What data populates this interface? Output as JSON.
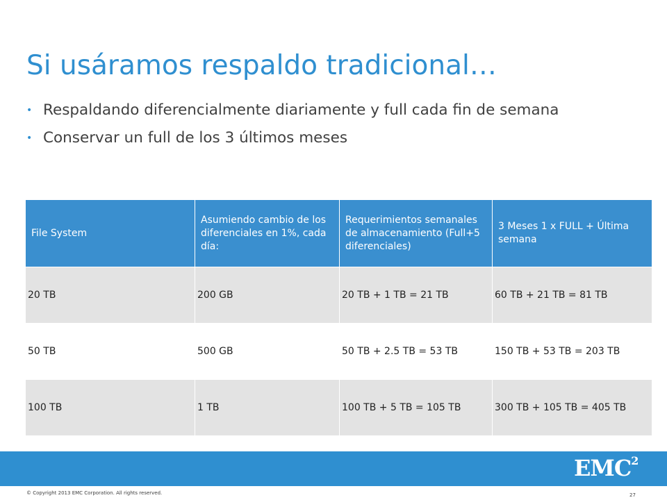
{
  "slide": {
    "title": "Si usáramos respaldo tradicional…",
    "bullets": [
      "Respaldando diferencialmente diariamente y full cada fin de semana",
      "Conservar un full de los 3 últimos meses"
    ]
  },
  "table": {
    "headers": [
      "File System",
      "Asumiendo cambio de los diferenciales en 1%, cada día:",
      "Requerimientos semanales de almacenamiento (Full+5 diferenciales)",
      "3 Meses 1 x FULL + Última semana"
    ],
    "rows": [
      [
        "20 TB",
        "200 GB",
        "20 TB + 1 TB = 21 TB",
        "60 TB + 21 TB = 81 TB"
      ],
      [
        "50 TB",
        "500 GB",
        "50 TB + 2.5 TB = 53 TB",
        "150 TB + 53 TB = 203 TB"
      ],
      [
        "100 TB",
        "1 TB",
        "100 TB + 5 TB = 105 TB",
        "300 TB + 105 TB = 405 TB"
      ]
    ]
  },
  "footer": {
    "logo_text": "EMC",
    "logo_sup": "2",
    "copyright": "© Copyright 2013 EMC Corporation. All rights reserved.",
    "page_number": "27",
    "bar_color": "#2f8fd0"
  },
  "colors": {
    "accent": "#2f8fd0",
    "header_bg": "#3a8fcf",
    "row_gray": "#e3e3e3"
  }
}
